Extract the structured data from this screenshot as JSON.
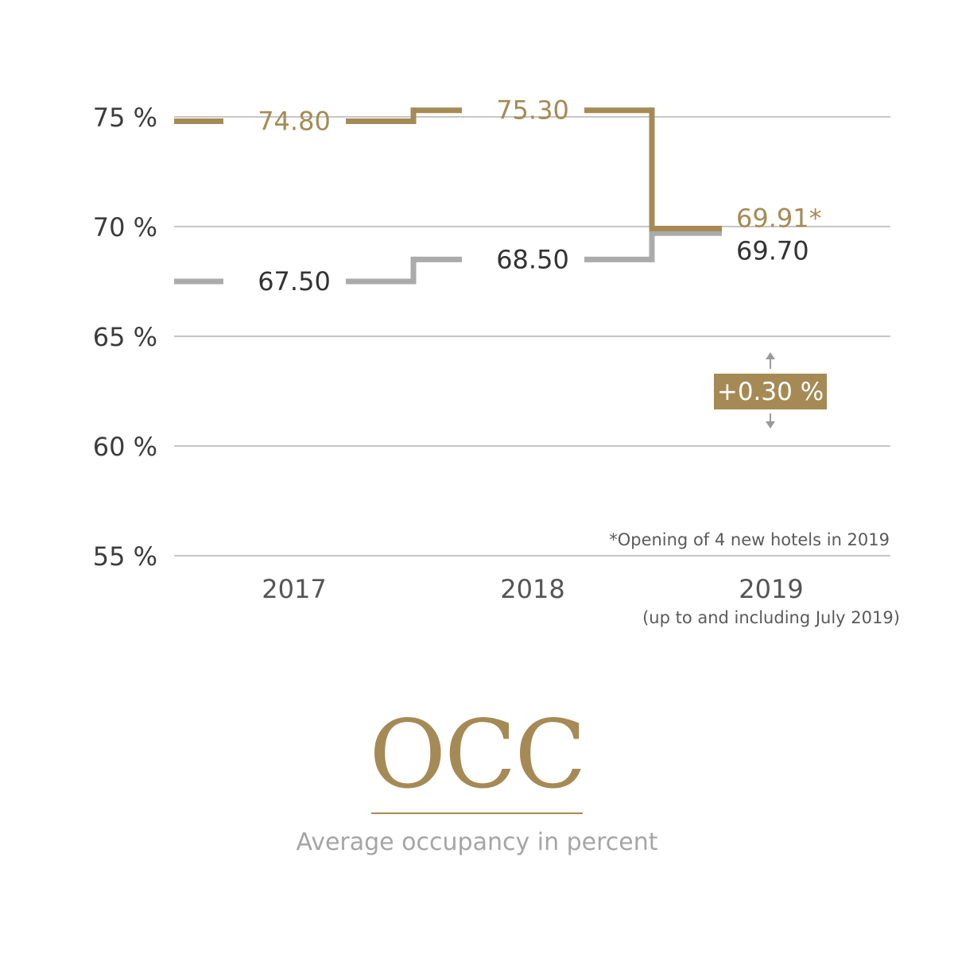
{
  "colors": {
    "gold": "#a68a55",
    "grey_line": "#ababab",
    "dark_text": "#333333",
    "axis_text": "#3c3c3c",
    "grid": "#a5a5a5",
    "arrow": "#9a9a9a",
    "subtitle": "#a5a5a5"
  },
  "chart_data": {
    "type": "line",
    "step": true,
    "categories": [
      "2017",
      "2018",
      "2019"
    ],
    "category_note": [
      "",
      "",
      "(up to and including July 2019)"
    ],
    "ylim": [
      55,
      75
    ],
    "yticks": [
      75,
      70,
      65,
      60,
      55
    ],
    "ytick_labels": [
      "75 %",
      "70 %",
      "65 %",
      "60 %",
      "55 %"
    ],
    "grid": true,
    "series": [
      {
        "key": "gold",
        "values": [
          74.8,
          75.3,
          69.91
        ],
        "labels": [
          "74.80",
          "75.30",
          "69.91*"
        ]
      },
      {
        "key": "grey",
        "values": [
          67.5,
          68.5,
          69.7
        ],
        "labels": [
          "67.50",
          "68.50",
          "69.70"
        ]
      }
    ],
    "change_badge": "+0.30 %",
    "footnote": "*Opening of 4 new hotels in 2019",
    "title": "OCC",
    "subtitle": "Average occupancy in percent"
  }
}
